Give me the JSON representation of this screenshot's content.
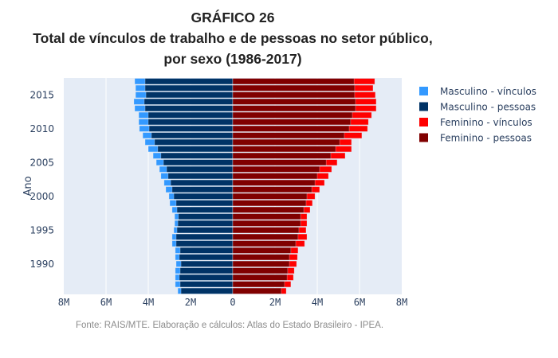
{
  "chart_data": {
    "type": "bar",
    "orientation": "horizontal",
    "barmode": "overlay",
    "title_lines": [
      "GRÁFICO 26",
      "Total de vínculos de trabalho e de pessoas no setor público,",
      "por sexo (1986-2017)"
    ],
    "source": "Fonte: RAIS/MTE. Elaboração e cálculos: Atlas do Estado Brasileiro - IPEA.",
    "xlabel": "",
    "ylabel": "Ano",
    "xlim": [
      -8000000,
      8000000
    ],
    "xticks": [
      -8000000,
      -6000000,
      -4000000,
      -2000000,
      0,
      2000000,
      4000000,
      6000000,
      8000000
    ],
    "xtick_labels": [
      "8M",
      "6M",
      "4M",
      "2M",
      "0",
      "2M",
      "4M",
      "6M",
      "8M"
    ],
    "ylim": [
      1985.5,
      2017.5
    ],
    "yticks": [
      1990,
      1995,
      2000,
      2005,
      2010,
      2015
    ],
    "ytick_labels": [
      "1990",
      "1995",
      "2000",
      "2005",
      "2010",
      "2015"
    ],
    "grid": true,
    "legend_position": "top-right-outside",
    "categories": [
      1986,
      1987,
      1988,
      1989,
      1990,
      1991,
      1992,
      1993,
      1994,
      1995,
      1996,
      1997,
      1998,
      1999,
      2000,
      2001,
      2002,
      2003,
      2004,
      2005,
      2006,
      2007,
      2008,
      2009,
      2010,
      2011,
      2012,
      2013,
      2014,
      2015,
      2016,
      2017
    ],
    "series": [
      {
        "name": "Masculino - vínculos",
        "color": "#3399ff",
        "side": "left",
        "values": [
          2600000,
          2720000,
          2720000,
          2720000,
          2680000,
          2720000,
          2720000,
          2870000,
          2870000,
          2790000,
          2750000,
          2750000,
          2870000,
          2980000,
          3020000,
          3170000,
          3250000,
          3400000,
          3470000,
          3620000,
          3770000,
          4000000,
          4150000,
          4260000,
          4420000,
          4450000,
          4450000,
          4640000,
          4680000,
          4600000,
          4600000,
          4640000
        ]
      },
      {
        "name": "Masculino - pessoas",
        "color": "#003366",
        "side": "left",
        "values": [
          2450000,
          2490000,
          2530000,
          2490000,
          2450000,
          2530000,
          2490000,
          2680000,
          2680000,
          2640000,
          2600000,
          2570000,
          2640000,
          2680000,
          2790000,
          2870000,
          2940000,
          3060000,
          3130000,
          3280000,
          3400000,
          3550000,
          3700000,
          3850000,
          3960000,
          4000000,
          4000000,
          4150000,
          4190000,
          4110000,
          4150000,
          4150000
        ]
      },
      {
        "name": "Feminino - vínculos",
        "color": "#ff0000",
        "side": "right",
        "values": [
          2530000,
          2750000,
          2870000,
          2910000,
          3020000,
          3060000,
          3090000,
          3400000,
          3510000,
          3470000,
          3510000,
          3510000,
          3660000,
          3770000,
          3890000,
          4110000,
          4340000,
          4530000,
          4680000,
          4940000,
          5320000,
          5620000,
          5620000,
          6110000,
          6380000,
          6420000,
          6570000,
          6790000,
          6790000,
          6750000,
          6640000,
          6720000
        ]
      },
      {
        "name": "Feminino - pessoas",
        "color": "#800000",
        "side": "right",
        "values": [
          2300000,
          2450000,
          2570000,
          2600000,
          2680000,
          2680000,
          2750000,
          2980000,
          3090000,
          3130000,
          3210000,
          3210000,
          3360000,
          3470000,
          3510000,
          3740000,
          3890000,
          4000000,
          4110000,
          4420000,
          4640000,
          4870000,
          5060000,
          5280000,
          5510000,
          5580000,
          5660000,
          5810000,
          5810000,
          5770000,
          5770000,
          5740000
        ]
      }
    ]
  }
}
